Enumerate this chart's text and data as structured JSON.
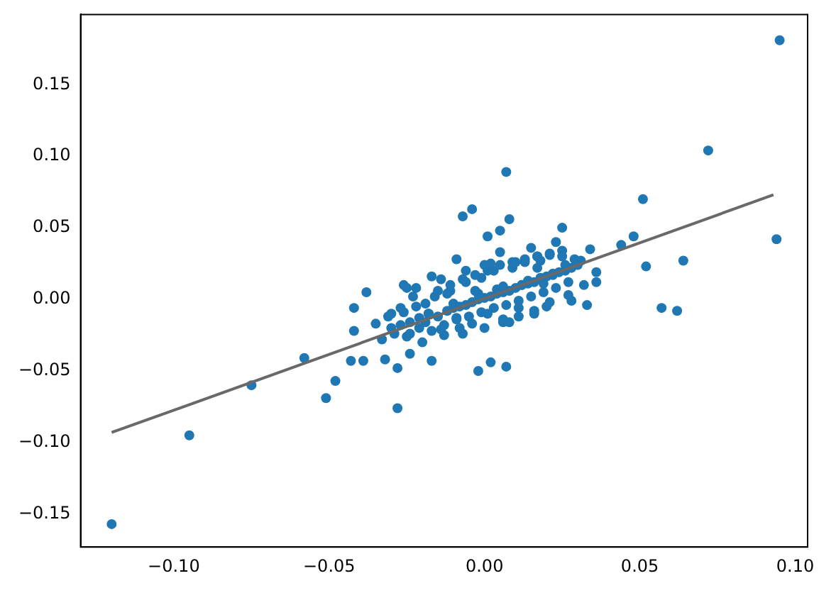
{
  "chart_data": {
    "type": "scatter",
    "marker": "circle",
    "grid": false,
    "legend": false,
    "xlim": [
      -0.13,
      0.104
    ],
    "ylim": [
      -0.173,
      0.199
    ],
    "xticks": [
      {
        "value": -0.1,
        "label": "−0.10"
      },
      {
        "value": -0.05,
        "label": "−0.05"
      },
      {
        "value": 0,
        "label": "0.00"
      },
      {
        "value": 0.05,
        "label": "0.05"
      },
      {
        "value": 0.1,
        "label": "0.10"
      }
    ],
    "yticks": [
      {
        "value": -0.15,
        "label": "−0.15"
      },
      {
        "value": -0.1,
        "label": "−0.10"
      },
      {
        "value": -0.05,
        "label": "−0.05"
      },
      {
        "value": 0,
        "label": "0.00"
      },
      {
        "value": 0.05,
        "label": "0.05"
      },
      {
        "value": 0.1,
        "label": "0.10"
      },
      {
        "value": 0.15,
        "label": "0.15"
      }
    ],
    "series": [
      {
        "color": "#1f77b4",
        "x": [
          -0.12,
          -0.095,
          -0.075,
          -0.058,
          -0.051,
          -0.048,
          -0.028,
          -0.042,
          -0.038,
          -0.042,
          -0.043,
          -0.039,
          -0.032,
          -0.024,
          -0.017,
          -0.028,
          -0.026,
          -0.035,
          0.007,
          -0.004,
          -0.007,
          0.008,
          0.001,
          0.005,
          0.025,
          -0.002,
          0.002,
          0.007,
          0.036,
          0.036,
          0.034,
          0.028,
          0.095,
          0.072,
          0.051,
          0.094,
          0.048,
          0.044,
          0.052,
          0.064,
          0.057,
          0.062,
          -0.03,
          -0.027,
          -0.024,
          -0.021,
          -0.018,
          -0.015,
          -0.012,
          -0.01,
          -0.008,
          -0.006,
          -0.004,
          -0.002,
          0.0,
          0.002,
          0.004,
          0.006,
          0.008,
          0.01,
          0.012,
          0.014,
          0.016,
          0.018,
          0.02,
          0.022,
          0.024,
          0.026,
          0.028,
          0.03,
          -0.022,
          -0.016,
          -0.011,
          -0.006,
          -0.001,
          0.003,
          0.009,
          0.013,
          0.017,
          0.021,
          0.025,
          -0.02,
          -0.013,
          -0.007,
          0.0,
          0.006,
          0.011,
          0.016,
          0.02,
          0.027,
          0.032,
          -0.025,
          -0.009,
          0.005,
          0.015,
          0.023,
          -0.033,
          -0.03,
          0.031,
          0.033,
          -0.031,
          -0.029,
          -0.027,
          -0.025,
          -0.023,
          -0.021,
          -0.019,
          -0.017,
          -0.015,
          -0.013,
          -0.011,
          -0.009,
          -0.007,
          -0.005,
          -0.003,
          -0.001,
          0.001,
          0.003,
          0.005,
          0.007,
          0.009,
          0.011,
          0.013,
          0.015,
          0.017,
          0.019,
          0.021,
          0.023,
          0.025,
          0.027,
          0.029,
          -0.026,
          -0.022,
          -0.018,
          -0.014,
          -0.01,
          -0.006,
          -0.002,
          0.002,
          0.006,
          0.01,
          0.014,
          0.018,
          0.022,
          0.026,
          -0.024,
          -0.019,
          -0.014,
          -0.009,
          -0.004,
          0.001,
          0.006,
          0.011,
          0.016,
          0.021,
          -0.017,
          -0.008,
          0.0,
          0.008,
          0.017,
          -0.012,
          -0.003,
          0.004,
          0.012,
          0.019
        ],
        "values": [
          -0.157,
          -0.095,
          -0.06,
          -0.041,
          -0.069,
          -0.057,
          -0.076,
          -0.006,
          0.005,
          -0.022,
          -0.043,
          -0.043,
          -0.042,
          -0.038,
          -0.043,
          -0.048,
          0.01,
          -0.017,
          0.089,
          0.063,
          0.058,
          0.056,
          0.044,
          0.048,
          0.05,
          -0.05,
          -0.044,
          -0.047,
          0.012,
          0.019,
          0.035,
          -0.001,
          0.181,
          0.104,
          0.07,
          0.042,
          0.044,
          0.038,
          0.023,
          0.027,
          -0.006,
          -0.008,
          -0.02,
          -0.018,
          -0.016,
          -0.013,
          -0.01,
          -0.012,
          -0.008,
          -0.006,
          -0.005,
          -0.004,
          -0.002,
          0.0,
          0.001,
          0.002,
          0.004,
          0.005,
          0.006,
          0.008,
          0.01,
          0.011,
          0.012,
          0.015,
          0.016,
          0.017,
          0.019,
          0.02,
          0.022,
          0.024,
          -0.005,
          0.002,
          0.006,
          0.012,
          0.015,
          0.02,
          0.022,
          0.026,
          0.03,
          0.032,
          0.034,
          -0.03,
          -0.025,
          -0.024,
          -0.02,
          -0.016,
          -0.012,
          -0.008,
          -0.005,
          0.003,
          0.01,
          0.008,
          0.028,
          0.033,
          0.036,
          0.04,
          -0.028,
          -0.01,
          0.027,
          -0.004,
          -0.012,
          -0.024,
          -0.006,
          -0.026,
          0.002,
          -0.02,
          -0.003,
          -0.022,
          0.006,
          -0.018,
          0.01,
          -0.014,
          0.014,
          -0.012,
          0.017,
          -0.009,
          0.02,
          -0.006,
          0.024,
          -0.004,
          0.026,
          -0.001,
          0.028,
          0.002,
          0.03,
          0.005,
          0.031,
          0.008,
          0.03,
          0.012,
          0.028,
          -0.009,
          0.008,
          -0.01,
          0.014,
          -0.003,
          0.02,
          0.004,
          0.025,
          0.009,
          0.026,
          0.013,
          0.027,
          0.018,
          0.024,
          -0.024,
          -0.016,
          -0.021,
          -0.013,
          -0.017,
          -0.01,
          -0.014,
          -0.006,
          -0.01,
          -0.002,
          0.016,
          -0.02,
          0.024,
          -0.016,
          0.022,
          0.004,
          0.006,
          0.007,
          0.01,
          0.011
        ]
      },
      {
        "type": "line",
        "color": "#696969",
        "marker": "none",
        "x": [
          -0.12,
          0.093
        ],
        "values": [
          -0.093,
          0.073
        ]
      }
    ]
  }
}
